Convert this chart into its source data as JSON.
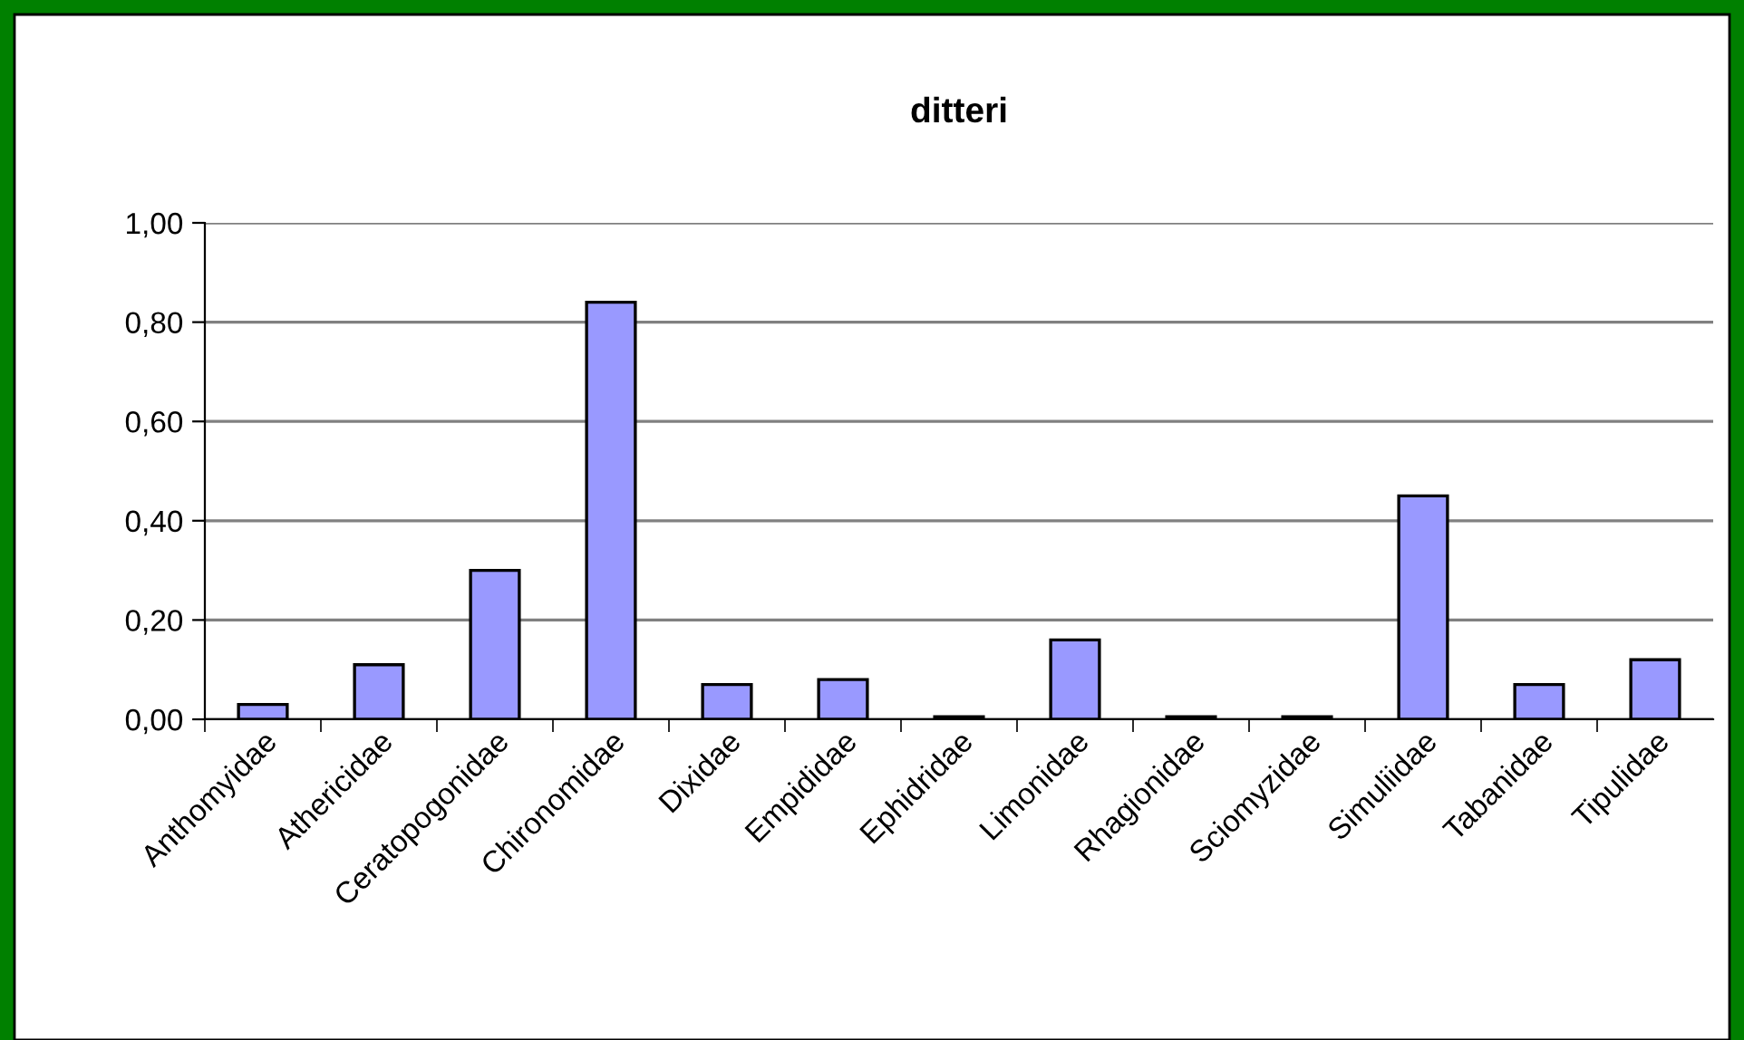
{
  "chart_data": {
    "type": "bar",
    "title": "ditteri",
    "categories": [
      "Anthomyidae",
      "Athericidae",
      "Ceratopogonidae",
      "Chironomidae",
      "Dixidae",
      "Empididae",
      "Ephidridae",
      "Limonidae",
      "Rhagionidae",
      "Sciomyzidae",
      "Simuliidae",
      "Tabanidae",
      "Tipulidae"
    ],
    "values": [
      0.03,
      0.11,
      0.3,
      0.84,
      0.07,
      0.08,
      0.005,
      0.16,
      0.005,
      0.005,
      0.45,
      0.07,
      0.12
    ],
    "color": "#9999ff",
    "ylim": [
      0,
      1
    ],
    "yticks": [
      {
        "value": 0,
        "label": "0,00"
      },
      {
        "value": 0.2,
        "label": "0,20"
      },
      {
        "value": 0.4,
        "label": "0,40"
      },
      {
        "value": 0.6,
        "label": "0,60"
      },
      {
        "value": 0.8,
        "label": "0,80"
      },
      {
        "value": 1,
        "label": "1,00"
      }
    ],
    "grid": "y"
  }
}
